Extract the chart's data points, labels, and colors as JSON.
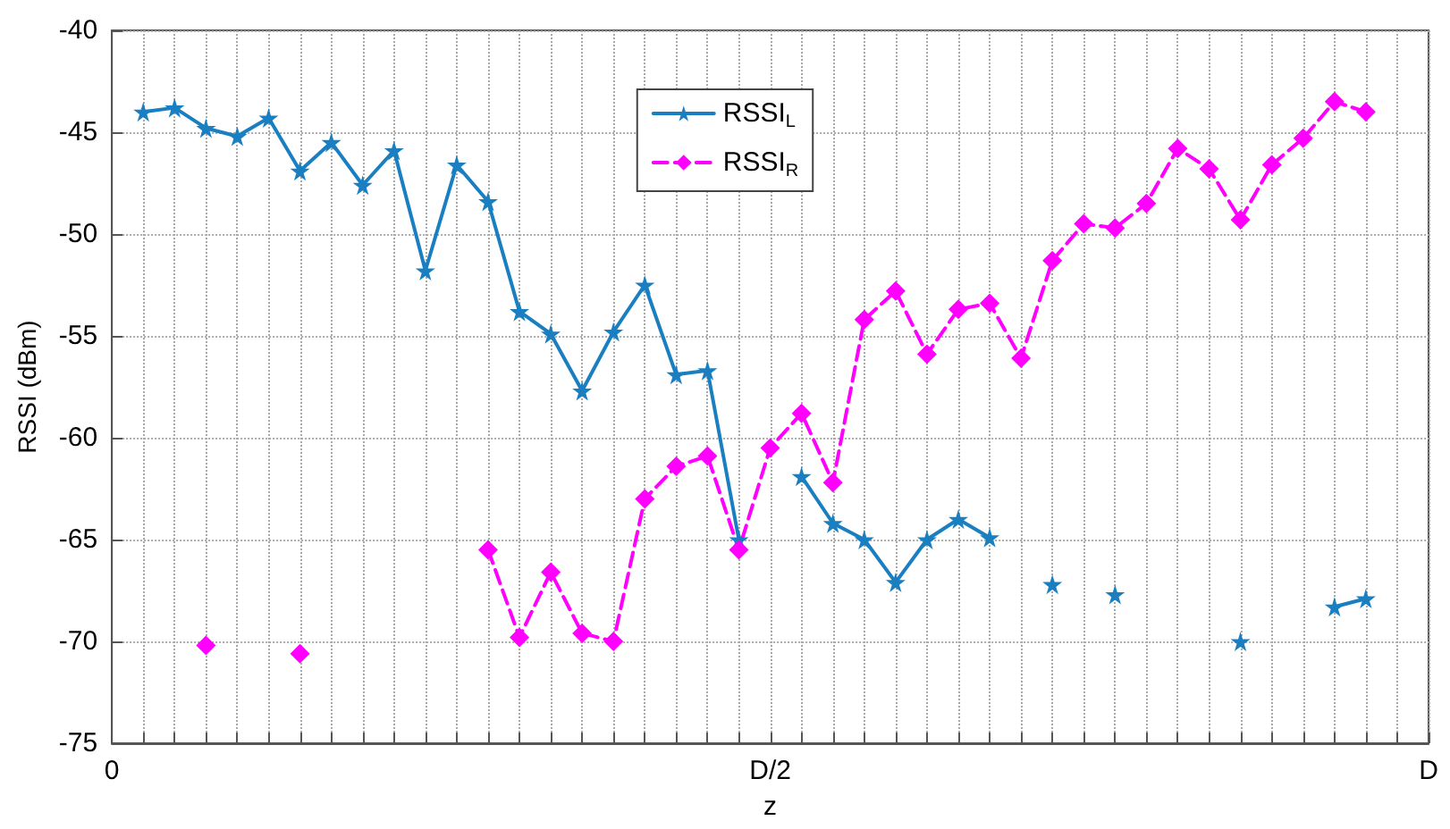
{
  "chart_data": {
    "type": "line",
    "xlabel": "z",
    "ylabel": "RSSI (dBm)",
    "categories": [
      "0",
      null,
      null,
      null,
      null,
      null,
      null,
      null,
      null,
      null,
      null,
      null,
      null,
      null,
      null,
      null,
      null,
      null,
      null,
      null,
      null,
      "D/2",
      null,
      null,
      null,
      null,
      null,
      null,
      null,
      null,
      null,
      null,
      null,
      null,
      null,
      null,
      null,
      null,
      null,
      null,
      null,
      null,
      "D"
    ],
    "ylim": [
      -75,
      -40
    ],
    "yticks": [
      -75,
      -70,
      -65,
      -60,
      -55,
      -50,
      -45,
      -40
    ],
    "grid": true,
    "legend": "top",
    "series": [
      {
        "name": "RSSI$_{L}$",
        "color": "#1a7fc1",
        "marker": "star",
        "line_style": "solid",
        "values": [
          null,
          -44.0,
          -43.8,
          -44.8,
          -45.2,
          -44.3,
          -46.9,
          -45.5,
          -47.6,
          -45.9,
          -51.8,
          -46.6,
          -48.4,
          -53.8,
          -54.9,
          -57.7,
          -54.8,
          -52.5,
          -56.9,
          -56.7,
          -65.0,
          null,
          -61.9,
          -64.2,
          -65.0,
          -67.1,
          -65.0,
          -64.0,
          -64.9,
          null,
          -67.2,
          null,
          -67.7,
          null,
          null,
          null,
          -70.0,
          null,
          null,
          -68.3,
          -67.9,
          null,
          null
        ]
      },
      {
        "name": "RSSI$_{R}$",
        "color": "#ff00ff",
        "marker": "diamond",
        "line_style": "dashed",
        "values": [
          null,
          null,
          null,
          -70.2,
          null,
          null,
          -70.6,
          null,
          null,
          null,
          null,
          null,
          -65.5,
          -69.8,
          -66.6,
          -69.6,
          -70.0,
          -63.0,
          -61.4,
          -60.9,
          -65.5,
          -60.5,
          -58.8,
          -62.2,
          -54.2,
          -52.8,
          -55.9,
          -53.7,
          -53.4,
          -56.1,
          -51.3,
          -49.5,
          -49.7,
          -48.5,
          -45.8,
          -46.8,
          -49.3,
          -46.6,
          -45.3,
          -43.5,
          -44.0,
          null,
          null
        ]
      }
    ]
  }
}
